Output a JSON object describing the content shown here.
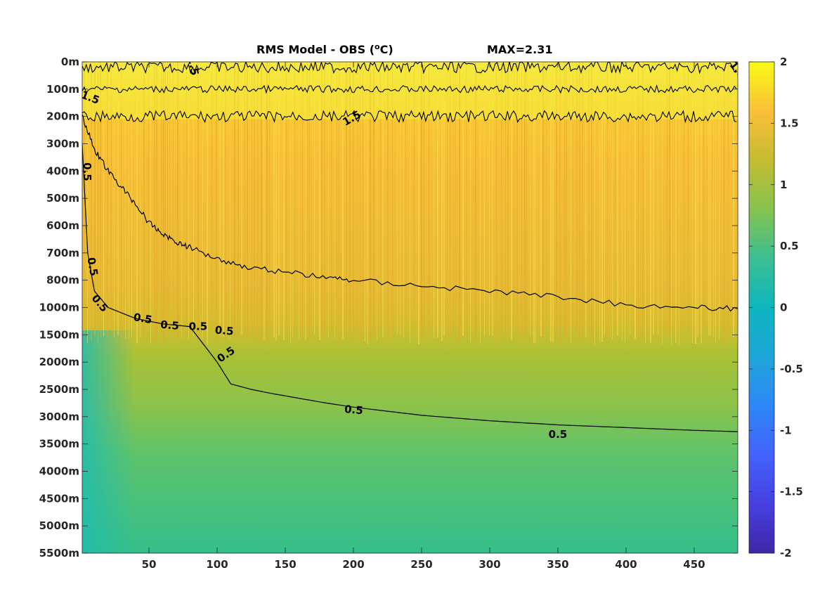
{
  "chart_data": {
    "type": "heatmap",
    "title": "RMS Model - OBS (",
    "title_unit": "C)",
    "title_superscript": "o",
    "max_label": "MAX=2.31",
    "xlabel": "",
    "ylabel": "",
    "x_ticks": [
      50,
      100,
      150,
      200,
      250,
      300,
      350,
      400,
      450
    ],
    "xlim": [
      1,
      482
    ],
    "y_ticks": [
      "0m",
      "100m",
      "200m",
      "300m",
      "400m",
      "500m",
      "600m",
      "700m",
      "800m",
      "1000m",
      "1500m",
      "2000m",
      "2500m",
      "3000m",
      "3500m",
      "4000m",
      "4500m",
      "5000m",
      "5500m"
    ],
    "colorbar": {
      "colormap": "parula",
      "clim": [
        -2,
        2
      ],
      "ticks": [
        "2",
        "1.5",
        "1",
        "0.5",
        "0",
        "-0.5",
        "-1",
        "-1.5",
        "-2"
      ]
    },
    "contour_levels": [
      0.5,
      1.5
    ],
    "contour_labels": [
      "1.5",
      "1.5",
      "1.5",
      "1.5",
      "0.5",
      "0.5",
      "0.5",
      "0.5",
      "0.5",
      "0.5",
      "0.5",
      "0.5",
      "0.5",
      "0.5"
    ],
    "contours": {
      "upper_1_5": {
        "level": 1.5,
        "depth_level_index": 0.2
      },
      "upper_1_5_b": {
        "level": 1.5,
        "depth_level_index": 1.0
      },
      "upper_1_5_c": {
        "level": 1.5,
        "depth_level_index": 2.0
      },
      "mid_1_5": {
        "level": 1.5,
        "x": [
          1,
          10,
          20,
          30,
          40,
          50,
          60,
          70,
          80,
          100,
          120,
          150,
          180,
          200,
          250,
          300,
          350,
          400,
          450,
          482
        ],
        "depth_level_index": [
          2.0,
          3.2,
          4.0,
          4.6,
          5.2,
          5.9,
          6.3,
          6.6,
          6.8,
          7.2,
          7.5,
          7.7,
          7.9,
          8.0,
          8.2,
          8.4,
          8.6,
          8.9,
          9.0,
          9.05
        ]
      },
      "lower_0_5": {
        "level": 0.5,
        "x": [
          1,
          5,
          10,
          20,
          40,
          60,
          80,
          100,
          110,
          125,
          140,
          180,
          200,
          250,
          300,
          350,
          400,
          450,
          482
        ],
        "depth_level_index": [
          3.0,
          7.0,
          8.4,
          9.0,
          9.4,
          9.6,
          9.7,
          11.0,
          11.8,
          12.0,
          12.15,
          12.5,
          12.65,
          12.95,
          13.15,
          13.3,
          13.4,
          13.5,
          13.55
        ]
      }
    },
    "field_summary": [
      {
        "depth_range": "0m-800m",
        "value": 1.4
      },
      {
        "depth_range": "800m-1500m",
        "value": 1.1
      },
      {
        "depth_range": "1500m-3000m",
        "value": 0.9
      },
      {
        "depth_range": "3000m-5500m",
        "value": 0.4
      }
    ]
  }
}
